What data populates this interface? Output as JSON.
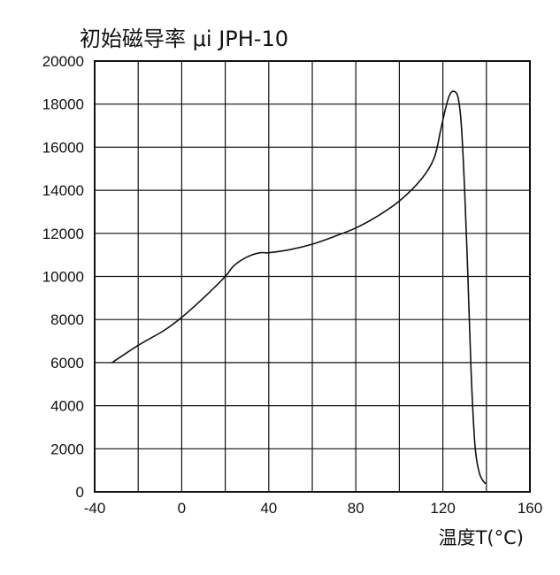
{
  "chart_data": {
    "type": "line",
    "title": "初始磁导率 μi  JPH-10",
    "xlabel": "温度T(°C)",
    "ylabel": "",
    "xlim": [
      -40,
      160
    ],
    "ylim": [
      0,
      20000
    ],
    "x_ticks": [
      -40,
      0,
      40,
      80,
      120,
      160
    ],
    "y_ticks": [
      0,
      2000,
      4000,
      6000,
      8000,
      10000,
      12000,
      14000,
      16000,
      18000,
      20000
    ],
    "grid": true,
    "grid_x_step": 20,
    "grid_y_step": 2000,
    "line_color": "#111111",
    "grid_color": "#111111",
    "series": [
      {
        "name": "",
        "x": [
          -32,
          -20,
          -8,
          0,
          10,
          20,
          24,
          30,
          36,
          40,
          50,
          60,
          70,
          80,
          90,
          100,
          110,
          116,
          119,
          121,
          123,
          125,
          127,
          128.5,
          130,
          131.5,
          133,
          134.5,
          135.5,
          137,
          138.5,
          139.5
        ],
        "y": [
          6000,
          6800,
          7500,
          8100,
          9000,
          10000,
          10500,
          10900,
          11100,
          11100,
          11250,
          11500,
          11850,
          12250,
          12800,
          13500,
          14500,
          15500,
          16800,
          17700,
          18400,
          18600,
          18300,
          17000,
          14000,
          10000,
          5500,
          2500,
          1500,
          800,
          500,
          400
        ]
      }
    ]
  }
}
